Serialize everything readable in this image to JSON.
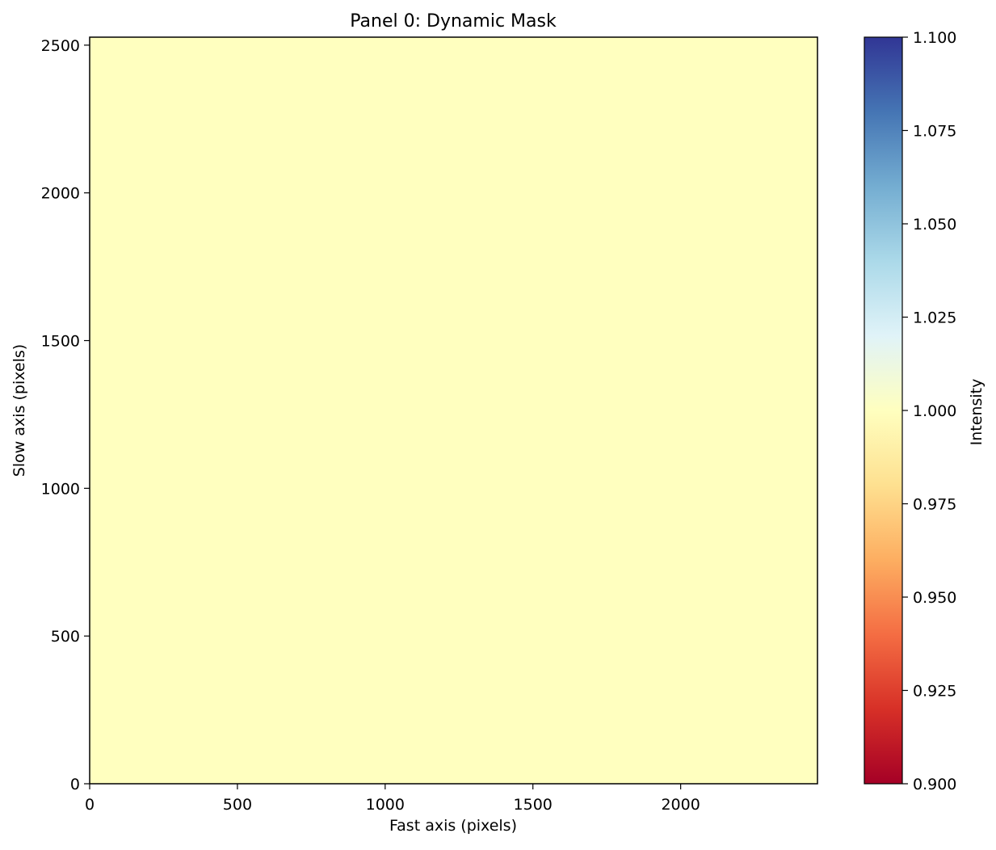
{
  "chart_data": {
    "type": "heatmap",
    "title": "Panel 0: Dynamic Mask",
    "xlabel": "Fast axis (pixels)",
    "ylabel": "Slow axis (pixels)",
    "xlim": [
      0,
      2463
    ],
    "ylim": [
      0,
      2527
    ],
    "xticks": [
      0,
      500,
      1000,
      1500,
      2000
    ],
    "yticks": [
      0,
      500,
      1000,
      1500,
      2000,
      2500
    ],
    "image": {
      "uniform_value": 1.0,
      "fill_color": "#ffffbf",
      "extent": [
        0,
        2463,
        0,
        2527
      ]
    },
    "colorbar": {
      "label": "Intensity",
      "vmin": 0.9,
      "vmax": 1.1,
      "ticks": [
        "0.900",
        "0.925",
        "0.950",
        "0.975",
        "1.000",
        "1.025",
        "1.050",
        "1.075",
        "1.100"
      ],
      "colormap": "RdYlBu",
      "stops": [
        "#a50026",
        "#d73027",
        "#f46d43",
        "#fdae61",
        "#fee090",
        "#ffffbf",
        "#e0f3f8",
        "#abd9e9",
        "#74add1",
        "#4575b4",
        "#313695"
      ]
    },
    "grid": false
  }
}
